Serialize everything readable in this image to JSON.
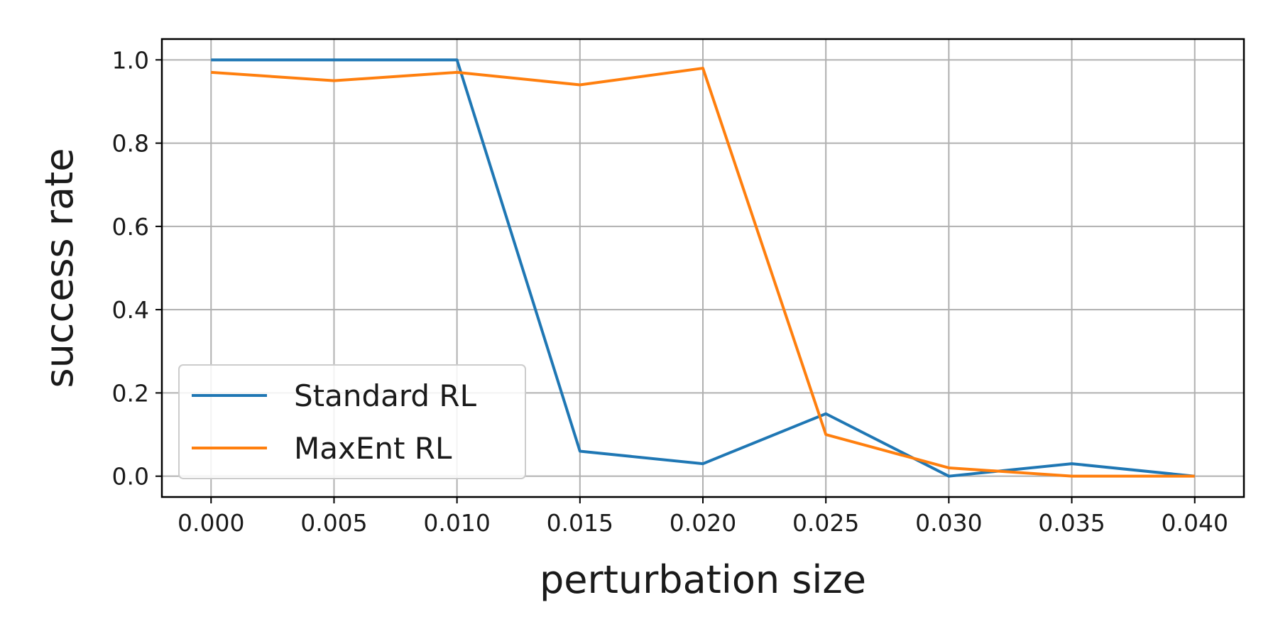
{
  "chart_data": {
    "type": "line",
    "x": [
      0.0,
      0.005,
      0.01,
      0.015,
      0.02,
      0.025,
      0.03,
      0.035,
      0.04
    ],
    "x_tick_labels": [
      "0.000",
      "0.005",
      "0.010",
      "0.015",
      "0.020",
      "0.025",
      "0.030",
      "0.035",
      "0.040"
    ],
    "y_tick_values": [
      0.0,
      0.2,
      0.4,
      0.6,
      0.8,
      1.0
    ],
    "y_tick_labels": [
      "0.0",
      "0.2",
      "0.4",
      "0.6",
      "0.8",
      "1.0"
    ],
    "series": [
      {
        "name": "Standard RL",
        "color": "#1f77b4",
        "values": [
          1.0,
          1.0,
          1.0,
          0.06,
          0.03,
          0.15,
          0.0,
          0.03,
          0.0
        ]
      },
      {
        "name": "MaxEnt RL",
        "color": "#ff7f0e",
        "values": [
          0.97,
          0.95,
          0.97,
          0.94,
          0.98,
          0.1,
          0.02,
          0.0,
          0.0
        ]
      }
    ],
    "title": "",
    "xlabel": "perturbation size",
    "ylabel": "success rate",
    "xlim": [
      -0.002,
      0.042
    ],
    "ylim": [
      -0.05,
      1.05
    ],
    "grid": true,
    "legend_position": "lower-left"
  }
}
